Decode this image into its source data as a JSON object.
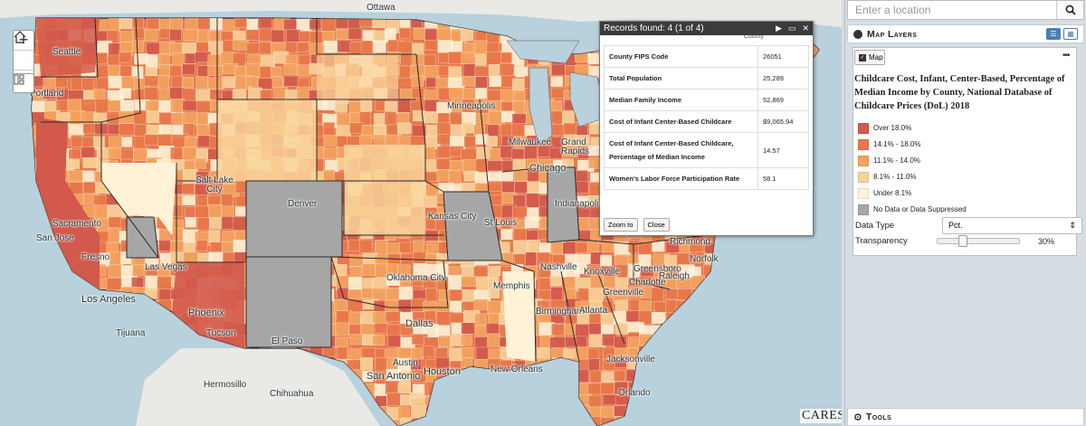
{
  "map": {
    "attribution": "CARES",
    "zoom_in": "+",
    "zoom_out": "−",
    "home_icon": "home-icon",
    "legend_toggle_icon": "legend-icon",
    "colors": {
      "water": "#b9d0dd",
      "land": "#ececec",
      "over18": "#d2594b",
      "c14_18": "#e8784a",
      "c11_14": "#f4a460",
      "c8_11": "#f9d29a",
      "under8": "#fff2d6",
      "nodata": "#a6a6a6",
      "state_line": "#2a2a2a"
    },
    "cities": {
      "Seattle": "Seattle",
      "Portland": "Portland",
      "Sacramento": "Sacramento",
      "San Jose": "San Jose",
      "Fresno": "Fresno",
      "Los Angeles": "Los Angeles",
      "Tijuana": "Tijuana",
      "Las Vegas": "Las Vegas",
      "Phoenix": "Phoenix",
      "Tucson": "Tucson",
      "Salt Lake City": "Salt Lake City",
      "Denver": "Denver",
      "El Paso": "El Paso",
      "Hermosillo": "Hermosillo",
      "Chihuahua": "Chihuahua",
      "Minneapolis": "Minneapolis",
      "Milwaukee": "Milwaukee",
      "Grand Rapids": "Grand Rapids",
      "Chicago": "Chicago",
      "Indianapolis": "Indianapolis",
      "Kansas City": "Kansas City",
      "St Louis": "St Louis",
      "Oklahoma City": "Oklahoma City",
      "Dallas": "Dallas",
      "Austin": "Austin",
      "Houston": "Houston",
      "San Antonio": "San Antonio",
      "New Orleans": "New Orleans",
      "Memphis": "Memphis",
      "Nashville": "Nashville",
      "Knoxville": "Knoxville",
      "Birmingham": "Birmingham",
      "Atlanta": "Atlanta",
      "Greenville": "Greenville",
      "Charlotte": "Charlotte",
      "Greensboro": "Greensboro",
      "Raleigh": "Raleigh",
      "Richmond": "Richmond",
      "Norfolk": "Norfolk",
      "Jacksonville": "Jacksonville",
      "Orlando": "Orlando",
      "Ottawa": "Ottawa"
    }
  },
  "popup": {
    "title": "Records found: 4 (1 of 4)",
    "partial_header": "County",
    "rows": [
      {
        "key": "County FIPS Code",
        "value": "26051"
      },
      {
        "key": "Total Population",
        "value": "25,289"
      },
      {
        "key": "Median Family Income",
        "value": "52,869"
      },
      {
        "key": "Cost of Infant Center-Based Childcare",
        "value": "$9,065.94"
      },
      {
        "key": "Cost of Infant Center-Based Childcare, Percentage of Median Income",
        "value": "14.57"
      },
      {
        "key": "Women's Labor Force Participation Rate",
        "value": "58.1"
      }
    ],
    "zoom_btn": "Zoom to",
    "close_btn": "Close"
  },
  "panel": {
    "location_placeholder": "Enter a location",
    "layers_title": "Map Layers",
    "map_button": "Map",
    "layer_title": "Childcare Cost, Infant, Center-Based, Percentage of Median Income by County, National Database of Childcare Prices (DoL) 2018",
    "legend": [
      {
        "label": "Over 18.0%",
        "color": "#d2594b"
      },
      {
        "label": "14.1% - 18.0%",
        "color": "#e8784a"
      },
      {
        "label": "11.1% - 14.0%",
        "color": "#f4a460"
      },
      {
        "label": "8.1% - 11.0%",
        "color": "#f9d29a"
      },
      {
        "label": "Under 8.1%",
        "color": "#fff2d6"
      },
      {
        "label": "No Data or Data Suppressed",
        "color": "#a6a6a6"
      }
    ],
    "data_type_label": "Data Type",
    "data_type_value": "Pct.",
    "transparency_label": "Transparency",
    "transparency_value": "30%",
    "transparency_fraction": 0.3,
    "tools_title": "Tools"
  }
}
